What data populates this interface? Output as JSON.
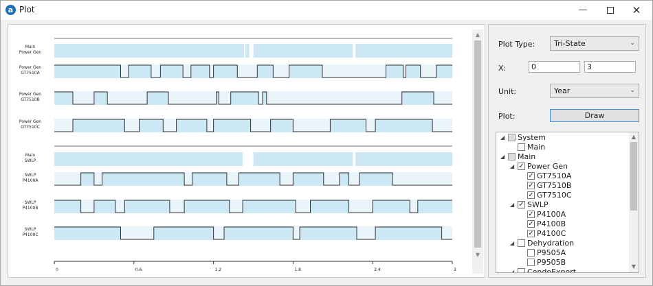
{
  "window": {
    "title": "Plot",
    "app_icon": "a",
    "minimize_glyph": "—",
    "close_glyph": "✕"
  },
  "chart_data": {
    "type": "tri-state timeline",
    "x": {
      "min": 0,
      "max": 3,
      "ticks": [
        "0",
        "0.6",
        "1.2",
        "1.8",
        "2.4",
        "3"
      ]
    },
    "tracks": [
      {
        "label_lines": [
          "Main",
          "Power Gen"
        ],
        "group": true,
        "segments": [
          [
            0,
            1.43,
            "up"
          ],
          [
            1.43,
            1.44,
            "down"
          ],
          [
            1.44,
            1.47,
            "up"
          ],
          [
            1.47,
            1.48,
            "down"
          ],
          [
            1.48,
            1.42,
            "up"
          ],
          [
            1.42,
            1.5,
            "gap"
          ],
          [
            1.5,
            2.25,
            "up"
          ],
          [
            2.25,
            2.27,
            "gap"
          ],
          [
            2.27,
            3,
            "up"
          ]
        ]
      },
      {
        "label_lines": [
          "Power Gen",
          "GT7510A"
        ],
        "group": false,
        "segments": [
          [
            0,
            0.5,
            "up"
          ],
          [
            0.5,
            0.56,
            "down"
          ],
          [
            0.56,
            0.73,
            "up"
          ],
          [
            0.73,
            0.8,
            "down"
          ],
          [
            0.8,
            0.97,
            "up"
          ],
          [
            0.97,
            1.03,
            "down"
          ],
          [
            1.03,
            1.17,
            "up"
          ],
          [
            1.17,
            1.2,
            "down"
          ],
          [
            1.2,
            1.38,
            "up"
          ],
          [
            1.38,
            1.53,
            "down"
          ],
          [
            1.53,
            1.65,
            "up"
          ],
          [
            1.65,
            1.77,
            "down"
          ],
          [
            1.77,
            2.02,
            "up"
          ],
          [
            2.02,
            2.5,
            "down"
          ],
          [
            2.5,
            2.63,
            "up"
          ],
          [
            2.63,
            2.65,
            "down"
          ],
          [
            2.65,
            2.76,
            "up"
          ],
          [
            2.76,
            2.88,
            "down"
          ],
          [
            2.88,
            3,
            "up"
          ]
        ]
      },
      {
        "label_lines": [
          "Power Gen",
          "GT7510B"
        ],
        "group": false,
        "segments": [
          [
            0,
            0.14,
            "up"
          ],
          [
            0.14,
            0.3,
            "down"
          ],
          [
            0.3,
            0.4,
            "up"
          ],
          [
            0.4,
            0.7,
            "down"
          ],
          [
            0.7,
            0.86,
            "up"
          ],
          [
            0.86,
            1.22,
            "down"
          ],
          [
            1.22,
            1.24,
            "up"
          ],
          [
            1.24,
            1.33,
            "down"
          ],
          [
            1.33,
            1.54,
            "up"
          ],
          [
            1.54,
            1.57,
            "down"
          ],
          [
            1.57,
            1.6,
            "up"
          ],
          [
            1.6,
            2.62,
            "down"
          ],
          [
            2.62,
            2.86,
            "up"
          ],
          [
            2.86,
            3,
            "down"
          ]
        ]
      },
      {
        "label_lines": [
          "Power Gen",
          "GT7510C"
        ],
        "group": false,
        "segments": [
          [
            0,
            0.14,
            "down"
          ],
          [
            0.14,
            0.53,
            "up"
          ],
          [
            0.53,
            0.64,
            "down"
          ],
          [
            0.64,
            0.82,
            "up"
          ],
          [
            0.82,
            0.92,
            "down"
          ],
          [
            0.92,
            1.15,
            "up"
          ],
          [
            1.15,
            1.2,
            "down"
          ],
          [
            1.2,
            1.48,
            "up"
          ],
          [
            1.48,
            1.63,
            "down"
          ],
          [
            1.63,
            1.8,
            "up"
          ],
          [
            1.8,
            2.08,
            "down"
          ],
          [
            2.08,
            2.35,
            "up"
          ],
          [
            2.35,
            2.42,
            "down"
          ],
          [
            2.42,
            2.85,
            "up"
          ],
          [
            2.85,
            3,
            "down"
          ]
        ]
      },
      {
        "label_lines": [
          "Main",
          "SWLP"
        ],
        "group": true,
        "segments": [
          [
            0,
            1.42,
            "up"
          ],
          [
            1.42,
            1.5,
            "gap"
          ],
          [
            1.5,
            2.25,
            "up"
          ],
          [
            2.25,
            2.27,
            "gap"
          ],
          [
            2.27,
            3,
            "up"
          ]
        ]
      },
      {
        "label_lines": [
          "SWLP",
          "P4100A"
        ],
        "group": false,
        "segments": [
          [
            0,
            0.2,
            "down"
          ],
          [
            0.2,
            0.3,
            "up"
          ],
          [
            0.3,
            0.36,
            "down"
          ],
          [
            0.36,
            0.98,
            "up"
          ],
          [
            0.98,
            1.04,
            "down"
          ],
          [
            1.04,
            1.3,
            "up"
          ],
          [
            1.3,
            1.39,
            "down"
          ],
          [
            1.39,
            1.7,
            "up"
          ],
          [
            1.7,
            1.8,
            "down"
          ],
          [
            1.8,
            2.03,
            "up"
          ],
          [
            2.03,
            2.15,
            "down"
          ],
          [
            2.15,
            2.22,
            "up"
          ],
          [
            2.22,
            2.3,
            "down"
          ],
          [
            2.3,
            2.55,
            "up"
          ],
          [
            2.55,
            3,
            "down"
          ]
        ]
      },
      {
        "label_lines": [
          "SWLP",
          "P4100B"
        ],
        "group": false,
        "segments": [
          [
            0,
            0.2,
            "up"
          ],
          [
            0.2,
            0.3,
            "down"
          ],
          [
            0.3,
            0.46,
            "up"
          ],
          [
            0.46,
            0.53,
            "down"
          ],
          [
            0.53,
            0.87,
            "up"
          ],
          [
            0.87,
            0.98,
            "down"
          ],
          [
            0.98,
            1.32,
            "up"
          ],
          [
            1.32,
            1.42,
            "down"
          ],
          [
            1.42,
            1.82,
            "up"
          ],
          [
            1.82,
            1.93,
            "down"
          ],
          [
            1.93,
            2.22,
            "up"
          ],
          [
            2.22,
            2.4,
            "down"
          ],
          [
            2.4,
            2.68,
            "up"
          ],
          [
            2.68,
            2.74,
            "down"
          ],
          [
            2.74,
            3,
            "up"
          ]
        ]
      },
      {
        "label_lines": [
          "SWLP",
          "P4100C"
        ],
        "group": false,
        "segments": [
          [
            0,
            0.5,
            "up"
          ],
          [
            0.5,
            0.75,
            "down"
          ],
          [
            0.75,
            1.2,
            "up"
          ],
          [
            1.2,
            1.28,
            "down"
          ],
          [
            1.28,
            1.8,
            "up"
          ],
          [
            1.8,
            1.85,
            "down"
          ],
          [
            1.85,
            2.28,
            "up"
          ],
          [
            2.28,
            2.42,
            "down"
          ],
          [
            2.42,
            2.92,
            "up"
          ],
          [
            2.92,
            3,
            "down"
          ]
        ]
      }
    ]
  },
  "controls": {
    "plot_type_label": "Plot Type:",
    "plot_type_value": "Tri-State",
    "x_label": "X:",
    "x_from": "0",
    "x_to": "3",
    "unit_label": "Unit:",
    "unit_value": "Year",
    "plot_label": "Plot:",
    "draw_button": "Draw"
  },
  "tree": {
    "items": [
      {
        "label": "System",
        "level": 0,
        "expander": "◢",
        "check": "gray"
      },
      {
        "label": "Main",
        "level": 1,
        "expander": "",
        "check": "off"
      },
      {
        "label": "Main",
        "level": 0,
        "expander": "◢",
        "check": "gray"
      },
      {
        "label": "Power Gen",
        "level": 1,
        "expander": "◢",
        "check": "on"
      },
      {
        "label": "GT7510A",
        "level": 2,
        "expander": "",
        "check": "on"
      },
      {
        "label": "GT7510B",
        "level": 2,
        "expander": "",
        "check": "on"
      },
      {
        "label": "GT7510C",
        "level": 2,
        "expander": "",
        "check": "on"
      },
      {
        "label": "SWLP",
        "level": 1,
        "expander": "◢",
        "check": "on"
      },
      {
        "label": "P4100A",
        "level": 2,
        "expander": "",
        "check": "on"
      },
      {
        "label": "P4100B",
        "level": 2,
        "expander": "",
        "check": "on"
      },
      {
        "label": "P4100C",
        "level": 2,
        "expander": "",
        "check": "on"
      },
      {
        "label": "Dehydration",
        "level": 1,
        "expander": "◢",
        "check": "off"
      },
      {
        "label": "P9505A",
        "level": 2,
        "expander": "",
        "check": "off"
      },
      {
        "label": "P9505B",
        "level": 2,
        "expander": "",
        "check": "off"
      },
      {
        "label": "CondoExport",
        "level": 1,
        "expander": "◢",
        "check": "off"
      }
    ]
  },
  "colors": {
    "up_fill": "#cce8f4",
    "line": "#333333",
    "group_bar": "#cce8f4",
    "accent": "#3c8ee0"
  },
  "glyphs": {
    "check": "✓",
    "caret": "⌄",
    "arrow_up": "▲",
    "arrow_down": "▼"
  }
}
